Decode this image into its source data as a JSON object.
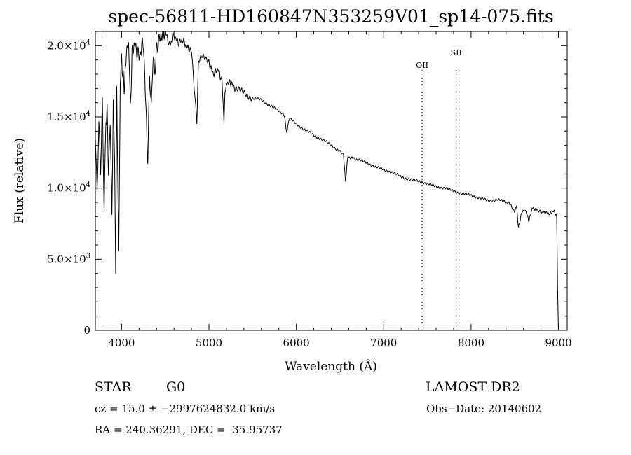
{
  "chart_data": {
    "type": "line",
    "title": "spec-56811-HD160847N353259V01_sp14-075.fits",
    "xlabel": "Wavelength (Å)",
    "ylabel": "Flux (relative)",
    "xlim": [
      3700,
      9100
    ],
    "ylim": [
      0,
      21000
    ],
    "x_ticks": [
      4000,
      5000,
      6000,
      7000,
      8000,
      9000
    ],
    "x_tick_labels": [
      "4000",
      "5000",
      "6000",
      "7000",
      "8000",
      "9000"
    ],
    "y_ticks": [
      {
        "value": 0,
        "mantissa": "0",
        "exp": ""
      },
      {
        "value": 5000,
        "mantissa": "5.0×10",
        "exp": "3"
      },
      {
        "value": 10000,
        "mantissa": "1.0×10",
        "exp": "4"
      },
      {
        "value": 15000,
        "mantissa": "1.5×10",
        "exp": "4"
      },
      {
        "value": 20000,
        "mantissa": "2.0×10",
        "exp": "4"
      }
    ],
    "grid": false,
    "line_markers": [
      {
        "label": "OII",
        "x": 7440
      },
      {
        "label": "SII",
        "x": 7830
      }
    ],
    "series": [
      {
        "color": "#000000",
        "x": [
          3700,
          3720,
          3740,
          3760,
          3780,
          3800,
          3820,
          3835,
          3850,
          3870,
          3889,
          3905,
          3920,
          3933,
          3945,
          3968,
          3985,
          4000,
          4030,
          4060,
          4080,
          4101,
          4120,
          4150,
          4200,
          4250,
          4300,
          4320,
          4340,
          4360,
          4383,
          4400,
          4450,
          4500,
          4550,
          4600,
          4650,
          4700,
          4750,
          4800,
          4861,
          4880,
          4920,
          4960,
          5000,
          5050,
          5100,
          5150,
          5172,
          5183,
          5200,
          5250,
          5300,
          5400,
          5500,
          5600,
          5700,
          5800,
          5860,
          5890,
          5896,
          5920,
          6000,
          6100,
          6200,
          6300,
          6400,
          6500,
          6540,
          6563,
          6590,
          6700,
          6800,
          6900,
          7000,
          7100,
          7200,
          7300,
          7400,
          7500,
          7600,
          7700,
          7800,
          7900,
          8000,
          8100,
          8200,
          8300,
          8400,
          8450,
          8498,
          8520,
          8542,
          8580,
          8620,
          8662,
          8700,
          8750,
          8800,
          8850,
          8900,
          8950,
          8980,
          8990,
          9000
        ],
        "y": [
          14000,
          9500,
          14500,
          11000,
          15800,
          8300,
          14800,
          15500,
          11000,
          15000,
          8000,
          16000,
          12500,
          4200,
          17000,
          5000,
          17800,
          19000,
          17000,
          19800,
          20700,
          15500,
          19500,
          20100,
          19200,
          20300,
          12000,
          18000,
          15500,
          19000,
          18500,
          19800,
          20700,
          21000,
          20000,
          20700,
          20200,
          20400,
          19900,
          19600,
          14500,
          19000,
          19300,
          19000,
          18800,
          18000,
          18400,
          17500,
          14600,
          16700,
          17400,
          17400,
          17000,
          16700,
          16300,
          16200,
          15800,
          15400,
          15200,
          13900,
          14100,
          14900,
          14500,
          14100,
          13700,
          13400,
          13000,
          12600,
          12300,
          10500,
          12200,
          12000,
          11800,
          11500,
          11300,
          11100,
          10800,
          10600,
          10500,
          10300,
          10100,
          10000,
          9800,
          9600,
          9500,
          9300,
          9100,
          9200,
          9000,
          8900,
          8300,
          8800,
          7200,
          8300,
          8500,
          7700,
          8600,
          8500,
          8300,
          8300,
          8200,
          8400,
          8000,
          3000,
          0
        ]
      }
    ]
  },
  "info": {
    "class_label": "STAR",
    "subclass_label": "G0",
    "survey": "LAMOST DR2",
    "cz_text": "cz = 15.0 ± −2997624832.0 km/s",
    "obs_date": "Obs−Date: 20140602",
    "coords": "RA = 240.36291, DEC =  35.95737"
  }
}
